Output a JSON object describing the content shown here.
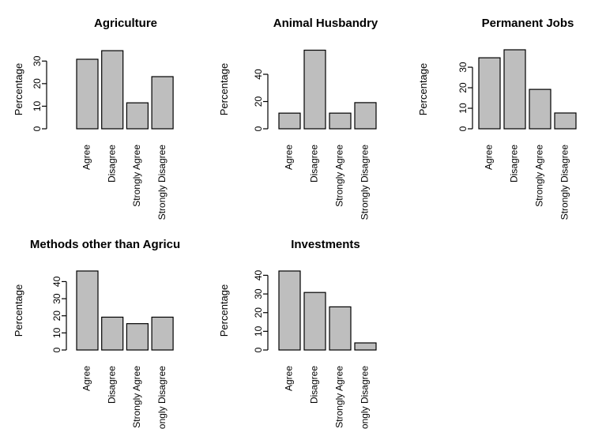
{
  "chart_data": [
    {
      "type": "bar",
      "title": "Agriculture",
      "ylabel": "Percentage",
      "xlabel": "",
      "categories": [
        "Agree",
        "Disagree",
        "Strongly Agree",
        "Strongly Disagree"
      ],
      "values": [
        30.8,
        34.6,
        11.5,
        23.1
      ],
      "yticks": [
        0,
        10,
        20,
        30
      ],
      "ylim": [
        0,
        35
      ]
    },
    {
      "type": "bar",
      "title": "Animal Husbandry",
      "ylabel": "Percentage",
      "xlabel": "",
      "categories": [
        "Agree",
        "Disagree",
        "Strongly Agree",
        "Strongly Disagree"
      ],
      "values": [
        11.5,
        57.7,
        11.5,
        19.2
      ],
      "yticks": [
        0,
        20,
        40
      ],
      "ylim": [
        0,
        58
      ]
    },
    {
      "type": "bar",
      "title": "Permanent Jobs",
      "ylabel": "Percentage",
      "xlabel": "",
      "categories": [
        "Agree",
        "Disagree",
        "Strongly Agree",
        "Strongly Disagree"
      ],
      "values": [
        34.6,
        38.5,
        19.2,
        7.7
      ],
      "yticks": [
        0,
        10,
        20,
        30
      ],
      "ylim": [
        0,
        38.5
      ]
    },
    {
      "type": "bar",
      "title": "Methods other than Agricu",
      "ylabel": "Percentage",
      "xlabel": "",
      "categories": [
        "Agree",
        "Disagree",
        "Strongly Agree",
        "Strongly Disagree"
      ],
      "values": [
        46.2,
        19.2,
        15.4,
        19.2
      ],
      "yticks": [
        0,
        10,
        20,
        30,
        40
      ],
      "ylim": [
        0,
        46.2
      ]
    },
    {
      "type": "bar",
      "title": "Investments",
      "ylabel": "Percentage",
      "xlabel": "",
      "categories": [
        "Agree",
        "Disagree",
        "Strongly Agree",
        "Strongly Disagree"
      ],
      "values": [
        42.3,
        30.8,
        23.1,
        3.8
      ],
      "yticks": [
        0,
        10,
        20,
        30,
        40
      ],
      "ylim": [
        0,
        42.3
      ]
    }
  ],
  "colors": {
    "bar_fill": "#bebebe",
    "bar_stroke": "#000000"
  }
}
